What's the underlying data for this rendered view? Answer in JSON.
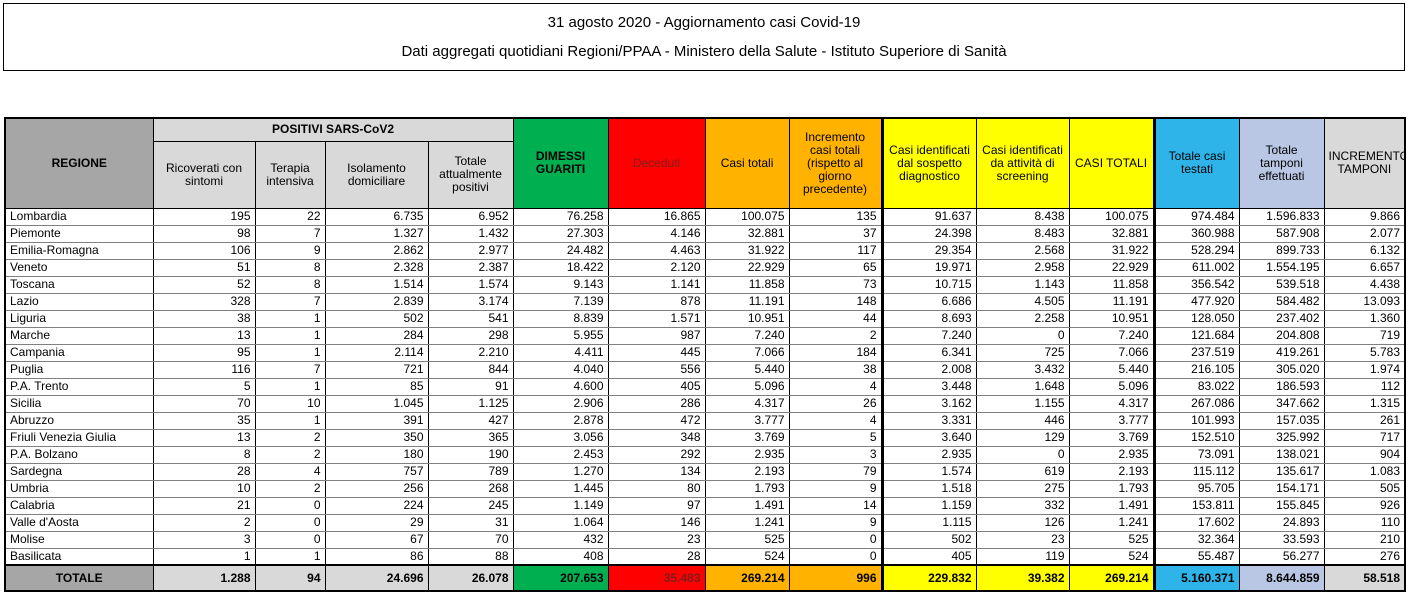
{
  "title": {
    "line1": "31 agosto 2020 - Aggiornamento casi Covid-19",
    "line2": "Dati aggregati quotidiani Regioni/PPAA - Ministero della Salute - Istituto Superiore di Sanità"
  },
  "table": {
    "corner_header": "REGIONE",
    "group_header": "POSITIVI SARS-CoV2",
    "sub_headers": [
      "Ricoverati con sintomi",
      "Terapia intensiva",
      "Isolamento domiciliare",
      "Totale attualmente positivi"
    ],
    "column_headers": [
      "DIMESSI GUARITI",
      "Deceduti",
      "Casi totali",
      "Incremento casi totali (rispetto al giorno precedente)",
      "Casi identificati dal sospetto diagnostico",
      "Casi identificati da attività di screening",
      "CASI TOTALI",
      "Totale casi testati",
      "Totale tamponi effettuati",
      "INCREMENTO TAMPONI"
    ],
    "rows": [
      {
        "regione": "Lombardia",
        "values": [
          "195",
          "22",
          "6.735",
          "6.952",
          "76.258",
          "16.865",
          "100.075",
          "135",
          "91.637",
          "8.438",
          "100.075",
          "974.484",
          "1.596.833",
          "9.866"
        ]
      },
      {
        "regione": "Piemonte",
        "values": [
          "98",
          "7",
          "1.327",
          "1.432",
          "27.303",
          "4.146",
          "32.881",
          "37",
          "24.398",
          "8.483",
          "32.881",
          "360.988",
          "587.908",
          "2.077"
        ]
      },
      {
        "regione": "Emilia-Romagna",
        "values": [
          "106",
          "9",
          "2.862",
          "2.977",
          "24.482",
          "4.463",
          "31.922",
          "117",
          "29.354",
          "2.568",
          "31.922",
          "528.294",
          "899.733",
          "6.132"
        ]
      },
      {
        "regione": "Veneto",
        "values": [
          "51",
          "8",
          "2.328",
          "2.387",
          "18.422",
          "2.120",
          "22.929",
          "65",
          "19.971",
          "2.958",
          "22.929",
          "611.002",
          "1.554.195",
          "6.657"
        ]
      },
      {
        "regione": "Toscana",
        "values": [
          "52",
          "8",
          "1.514",
          "1.574",
          "9.143",
          "1.141",
          "11.858",
          "73",
          "10.715",
          "1.143",
          "11.858",
          "356.542",
          "539.518",
          "4.438"
        ]
      },
      {
        "regione": "Lazio",
        "values": [
          "328",
          "7",
          "2.839",
          "3.174",
          "7.139",
          "878",
          "11.191",
          "148",
          "6.686",
          "4.505",
          "11.191",
          "477.920",
          "584.482",
          "13.093"
        ]
      },
      {
        "regione": "Liguria",
        "values": [
          "38",
          "1",
          "502",
          "541",
          "8.839",
          "1.571",
          "10.951",
          "44",
          "8.693",
          "2.258",
          "10.951",
          "128.050",
          "237.402",
          "1.360"
        ]
      },
      {
        "regione": "Marche",
        "values": [
          "13",
          "1",
          "284",
          "298",
          "5.955",
          "987",
          "7.240",
          "2",
          "7.240",
          "0",
          "7.240",
          "121.684",
          "204.808",
          "719"
        ]
      },
      {
        "regione": "Campania",
        "values": [
          "95",
          "1",
          "2.114",
          "2.210",
          "4.411",
          "445",
          "7.066",
          "184",
          "6.341",
          "725",
          "7.066",
          "237.519",
          "419.261",
          "5.783"
        ]
      },
      {
        "regione": "Puglia",
        "values": [
          "116",
          "7",
          "721",
          "844",
          "4.040",
          "556",
          "5.440",
          "38",
          "2.008",
          "3.432",
          "5.440",
          "216.105",
          "305.020",
          "1.974"
        ]
      },
      {
        "regione": "P.A. Trento",
        "values": [
          "5",
          "1",
          "85",
          "91",
          "4.600",
          "405",
          "5.096",
          "4",
          "3.448",
          "1.648",
          "5.096",
          "83.022",
          "186.593",
          "112"
        ]
      },
      {
        "regione": "Sicilia",
        "values": [
          "70",
          "10",
          "1.045",
          "1.125",
          "2.906",
          "286",
          "4.317",
          "26",
          "3.162",
          "1.155",
          "4.317",
          "267.086",
          "347.662",
          "1.315"
        ]
      },
      {
        "regione": "Abruzzo",
        "values": [
          "35",
          "1",
          "391",
          "427",
          "2.878",
          "472",
          "3.777",
          "4",
          "3.331",
          "446",
          "3.777",
          "101.993",
          "157.035",
          "261"
        ]
      },
      {
        "regione": "Friuli Venezia Giulia",
        "values": [
          "13",
          "2",
          "350",
          "365",
          "3.056",
          "348",
          "3.769",
          "5",
          "3.640",
          "129",
          "3.769",
          "152.510",
          "325.992",
          "717"
        ]
      },
      {
        "regione": "P.A. Bolzano",
        "values": [
          "8",
          "2",
          "180",
          "190",
          "2.453",
          "292",
          "2.935",
          "3",
          "2.935",
          "0",
          "2.935",
          "73.091",
          "138.021",
          "904"
        ]
      },
      {
        "regione": "Sardegna",
        "values": [
          "28",
          "4",
          "757",
          "789",
          "1.270",
          "134",
          "2.193",
          "79",
          "1.574",
          "619",
          "2.193",
          "115.112",
          "135.617",
          "1.083"
        ]
      },
      {
        "regione": "Umbria",
        "values": [
          "10",
          "2",
          "256",
          "268",
          "1.445",
          "80",
          "1.793",
          "9",
          "1.518",
          "275",
          "1.793",
          "95.705",
          "154.171",
          "505"
        ]
      },
      {
        "regione": "Calabria",
        "values": [
          "21",
          "0",
          "224",
          "245",
          "1.149",
          "97",
          "1.491",
          "14",
          "1.159",
          "332",
          "1.491",
          "153.811",
          "155.845",
          "926"
        ]
      },
      {
        "regione": "Valle d'Aosta",
        "values": [
          "2",
          "0",
          "29",
          "31",
          "1.064",
          "146",
          "1.241",
          "9",
          "1.115",
          "126",
          "1.241",
          "17.602",
          "24.893",
          "110"
        ]
      },
      {
        "regione": "Molise",
        "values": [
          "3",
          "0",
          "67",
          "70",
          "432",
          "23",
          "525",
          "0",
          "502",
          "23",
          "525",
          "32.364",
          "33.593",
          "210"
        ]
      },
      {
        "regione": "Basilicata",
        "values": [
          "1",
          "1",
          "86",
          "88",
          "408",
          "28",
          "524",
          "0",
          "405",
          "119",
          "524",
          "55.487",
          "56.277",
          "276"
        ]
      }
    ],
    "total_row": {
      "label": "TOTALE",
      "values": [
        "1.288",
        "94",
        "24.696",
        "26.078",
        "207.653",
        "35.483",
        "269.214",
        "996",
        "229.832",
        "39.382",
        "269.214",
        "5.160.371",
        "8.644.859",
        "58.518"
      ]
    }
  },
  "colors": {
    "header-gray": "#A6A6A6",
    "light-gray": "#D9D9D9",
    "green": "#00B050",
    "red": "#FF0000",
    "deceduti-text": "#7F1D1D",
    "orange": "#FFB300",
    "yellow": "#FFFF00",
    "cyan": "#2FB4E9",
    "periwinkle": "#B9C7E4"
  }
}
